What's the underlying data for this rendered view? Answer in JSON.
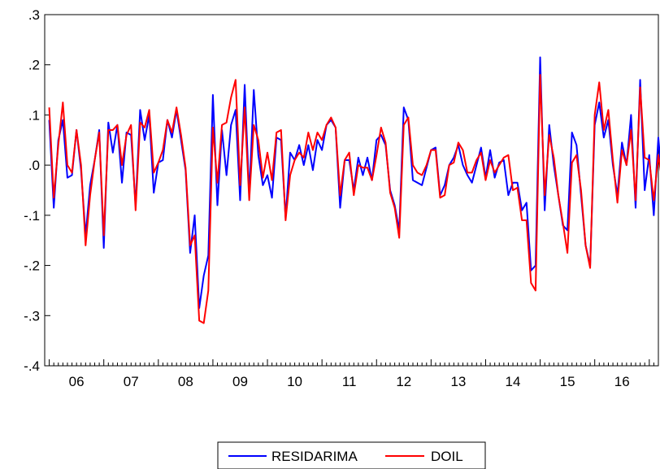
{
  "chart_data": {
    "type": "line",
    "title": "",
    "xlabel": "",
    "ylabel": "",
    "ylim": [
      -0.4,
      0.3
    ],
    "xlim": [
      2005.917,
      2017.167
    ],
    "grid": false,
    "legend_position": "bottom-center",
    "y_ticks": [
      ".3",
      ".2",
      ".1",
      ".0",
      "-.1",
      "-.2",
      "-.3",
      "-.4"
    ],
    "y_tick_values": [
      0.3,
      0.2,
      0.1,
      0.0,
      -0.1,
      -0.2,
      -0.3,
      -0.4
    ],
    "x_ticks": [
      "06",
      "07",
      "08",
      "09",
      "10",
      "11",
      "12",
      "13",
      "14",
      "15",
      "16",
      "17"
    ],
    "x_start": 2006.0,
    "x_step": 0.08333,
    "series": [
      {
        "name": "RESIDARIMA",
        "color": "#0000ff",
        "values": [
          0.09,
          -0.085,
          0.05,
          0.09,
          -0.025,
          -0.02,
          0.07,
          -0.01,
          -0.14,
          -0.04,
          0.01,
          0.07,
          -0.165,
          0.085,
          0.025,
          0.08,
          -0.035,
          0.065,
          0.06,
          -0.08,
          0.11,
          0.05,
          0.1,
          -0.055,
          0.005,
          0.01,
          0.09,
          0.055,
          0.11,
          0.05,
          -0.01,
          -0.175,
          -0.1,
          -0.285,
          -0.22,
          -0.18,
          0.14,
          -0.08,
          0.07,
          -0.02,
          0.08,
          0.11,
          -0.07,
          0.16,
          -0.06,
          0.15,
          0.02,
          -0.04,
          -0.02,
          -0.065,
          0.055,
          0.05,
          -0.105,
          0.025,
          0.01,
          0.04,
          0.0,
          0.04,
          -0.01,
          0.05,
          0.03,
          0.08,
          0.09,
          0.075,
          -0.085,
          0.01,
          0.01,
          -0.05,
          0.015,
          -0.02,
          0.015,
          -0.03,
          0.05,
          0.06,
          0.04,
          -0.05,
          -0.08,
          -0.13,
          0.115,
          0.09,
          -0.03,
          -0.035,
          -0.04,
          -0.005,
          0.03,
          0.035,
          -0.06,
          -0.04,
          0.0,
          0.015,
          0.04,
          0.0,
          -0.02,
          -0.035,
          0.0,
          0.035,
          -0.025,
          0.03,
          -0.025,
          0.005,
          0.01,
          -0.06,
          -0.035,
          -0.035,
          -0.09,
          -0.075,
          -0.21,
          -0.2,
          0.215,
          -0.09,
          0.08,
          0.0,
          -0.06,
          -0.12,
          -0.13,
          0.065,
          0.04,
          -0.06,
          -0.16,
          -0.2,
          0.08,
          0.125,
          0.055,
          0.09,
          0.0,
          -0.06,
          0.045,
          0.0,
          0.1,
          -0.085,
          0.17,
          -0.05,
          0.02,
          -0.1,
          0.055,
          -0.05,
          -0.04
        ],
        "start_offset": 0
      },
      {
        "name": "DOIL",
        "color": "#ff0000",
        "values": [
          0.115,
          -0.065,
          0.04,
          0.125,
          0.0,
          -0.015,
          0.07,
          0.0,
          -0.16,
          -0.06,
          0.01,
          0.065,
          -0.14,
          0.07,
          0.07,
          0.08,
          0.0,
          0.06,
          0.08,
          -0.09,
          0.085,
          0.075,
          0.11,
          -0.015,
          0.005,
          0.03,
          0.09,
          0.065,
          0.115,
          0.06,
          -0.005,
          -0.16,
          -0.14,
          -0.31,
          -0.315,
          -0.25,
          0.075,
          -0.035,
          0.08,
          0.085,
          0.135,
          0.17,
          -0.04,
          0.115,
          -0.07,
          0.08,
          0.05,
          -0.025,
          0.025,
          -0.03,
          0.065,
          0.07,
          -0.11,
          -0.02,
          0.01,
          0.025,
          0.015,
          0.065,
          0.03,
          0.065,
          0.05,
          0.08,
          0.095,
          0.075,
          -0.06,
          0.01,
          0.025,
          -0.06,
          0.0,
          -0.005,
          -0.005,
          -0.03,
          0.02,
          0.075,
          0.045,
          -0.055,
          -0.085,
          -0.145,
          0.08,
          0.095,
          0.0,
          -0.015,
          -0.02,
          0.0,
          0.03,
          0.03,
          -0.065,
          -0.06,
          0.0,
          0.005,
          0.045,
          0.03,
          -0.015,
          -0.015,
          0.01,
          0.025,
          -0.03,
          0.01,
          -0.015,
          0.0,
          0.015,
          0.02,
          -0.05,
          -0.045,
          -0.11,
          -0.11,
          -0.235,
          -0.25,
          0.18,
          -0.06,
          0.06,
          0.015,
          -0.06,
          -0.115,
          -0.175,
          0.005,
          0.02,
          -0.05,
          -0.16,
          -0.205,
          0.1,
          0.165,
          0.07,
          0.11,
          0.01,
          -0.075,
          0.03,
          0.0,
          0.07,
          -0.07,
          0.155,
          0.015,
          0.01,
          -0.07,
          0.02,
          -0.04,
          -0.08
        ],
        "start_offset": 0
      }
    ]
  }
}
